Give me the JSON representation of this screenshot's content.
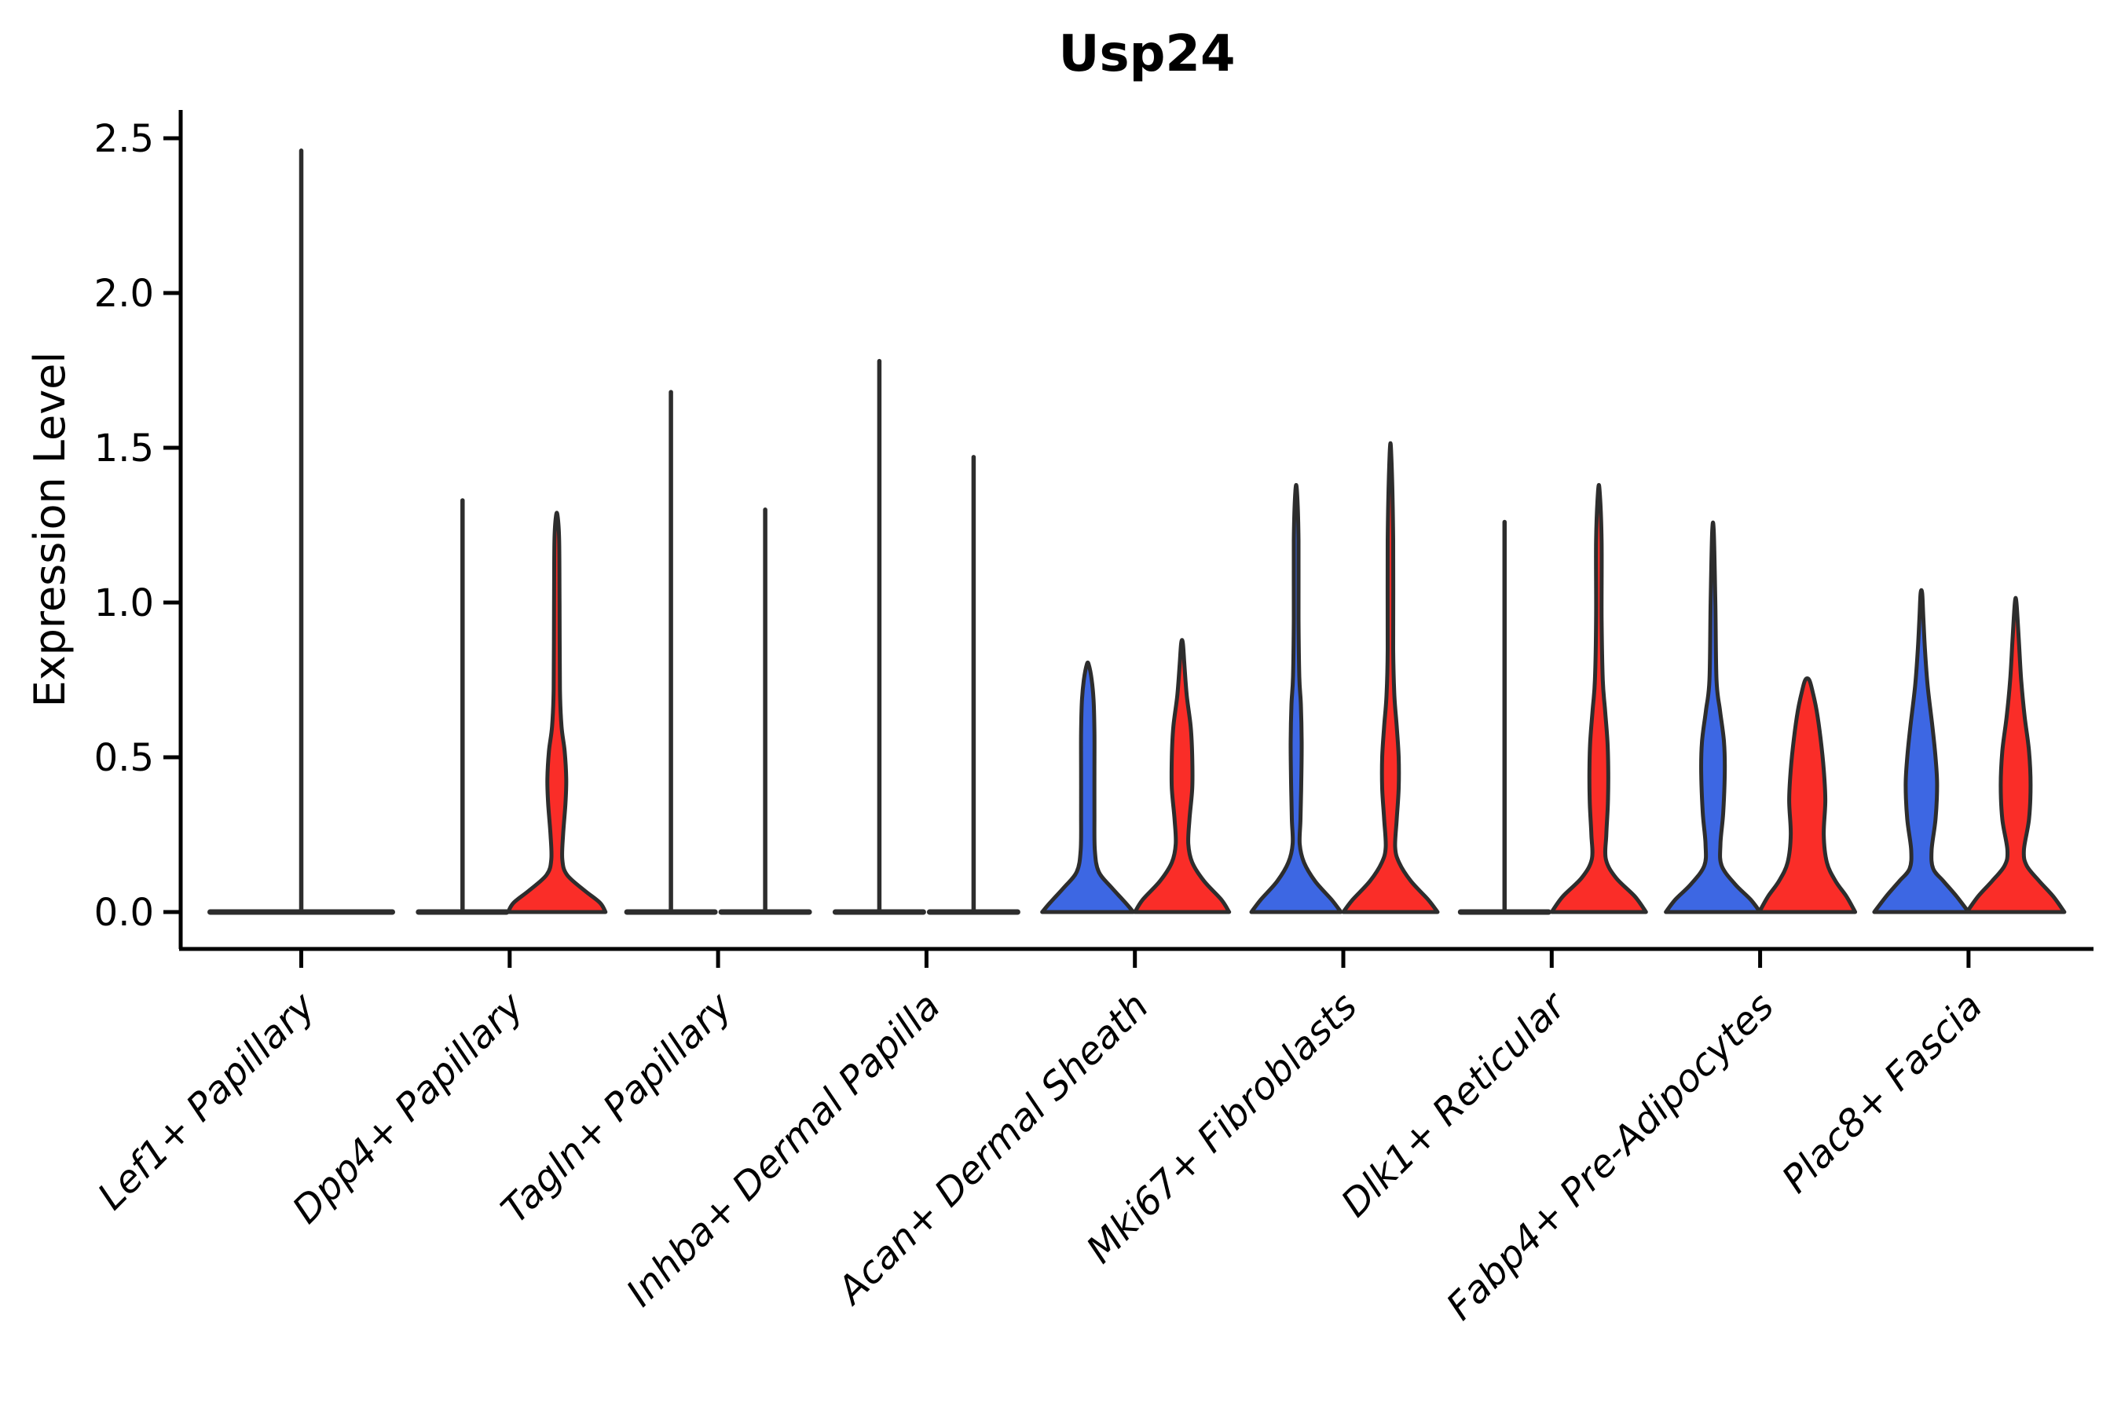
{
  "title": "Usp24",
  "axes": {
    "ylabel": "Expression Level",
    "yticks": [
      {
        "value": 0.0,
        "label": "0.0"
      },
      {
        "value": 0.5,
        "label": "0.5"
      },
      {
        "value": 1.0,
        "label": "1.0"
      },
      {
        "value": 1.5,
        "label": "1.5"
      },
      {
        "value": 2.0,
        "label": "2.0"
      },
      {
        "value": 2.5,
        "label": "2.5"
      }
    ],
    "ylim": [
      -0.12,
      2.6
    ],
    "xlabel_rotation_deg": 45,
    "xlabel_style": "italic"
  },
  "colors": {
    "blue": "#3D67E3",
    "red": "#FA2D28",
    "outline": "#2D2D2D",
    "axis": "#000000",
    "text": "#000000",
    "background": "#ffffff"
  },
  "chart_data": {
    "type": "violin",
    "title": "Usp24",
    "ylabel": "Expression Level",
    "ylim": [
      -0.12,
      2.6
    ],
    "yticks": [
      0.0,
      0.5,
      1.0,
      1.5,
      2.0,
      2.5
    ],
    "legend": "none",
    "grid": "off",
    "groups": [
      {
        "name": "blue",
        "color": "#3D67E3"
      },
      {
        "name": "red",
        "color": "#FA2D28"
      }
    ],
    "categories": [
      "Lef1+ Papillary",
      "Dpp4+ Papillary",
      "Tagln+ Papillary",
      "Inhba+ Dermal Papilla",
      "Acan+ Dermal Sheath",
      "Mki67+ Fibroblasts",
      "Dlk1+ Reticular",
      "Fabp4+ Pre-Adipocytes",
      "Plac8+ Fascia"
    ],
    "max_expression": {
      "blue": [
        2.46,
        1.33,
        1.68,
        1.78,
        0.8,
        1.36,
        1.26,
        1.23,
        1.03
      ],
      "red": [
        null,
        1.28,
        1.3,
        1.47,
        0.87,
        1.48,
        1.36,
        0.75,
        1.0
      ]
    },
    "note": "Most density sits at expression 0; Lef1+ Papillary shows a single full-width collapsed violin centered on its tick. Profiles give half-width (px) at each expression value.",
    "violins": [
      {
        "label": "Lef1+ Papillary",
        "items": [
          {
            "group": "single",
            "kind": "spike",
            "center_offset": 0,
            "base_halfwidth": 120,
            "max": 2.46
          }
        ]
      },
      {
        "label": "Dpp4+ Papillary",
        "items": [
          {
            "group": "blue",
            "kind": "spike",
            "center_offset": -60,
            "base_halfwidth": 60,
            "max": 1.33
          },
          {
            "group": "red",
            "kind": "body",
            "center_offset": 60,
            "max": 1.28,
            "profile": [
              [
                0,
                62
              ],
              [
                0.03,
                55
              ],
              [
                0.07,
                35
              ],
              [
                0.12,
                13
              ],
              [
                0.17,
                7
              ],
              [
                0.25,
                8
              ],
              [
                0.35,
                11
              ],
              [
                0.43,
                12
              ],
              [
                0.52,
                10
              ],
              [
                0.6,
                6
              ],
              [
                0.72,
                4
              ],
              [
                1.0,
                3.5
              ],
              [
                1.2,
                3
              ],
              [
                1.28,
                1
              ]
            ]
          }
        ]
      },
      {
        "label": "Tagln+ Papillary",
        "items": [
          {
            "group": "blue",
            "kind": "spike",
            "center_offset": -60,
            "base_halfwidth": 60,
            "max": 1.68
          },
          {
            "group": "red",
            "kind": "spike",
            "center_offset": 60,
            "base_halfwidth": 60,
            "max": 1.3
          }
        ]
      },
      {
        "label": "Inhba+ Dermal Papilla",
        "items": [
          {
            "group": "blue",
            "kind": "spike",
            "center_offset": -60,
            "base_halfwidth": 60,
            "max": 1.78
          },
          {
            "group": "red",
            "kind": "spike",
            "center_offset": 60,
            "base_halfwidth": 60,
            "max": 1.47
          }
        ]
      },
      {
        "label": "Acan+ Dermal Sheath",
        "items": [
          {
            "group": "blue",
            "kind": "body",
            "center_offset": -60,
            "max": 0.8,
            "profile": [
              [
                0,
                58
              ],
              [
                0.03,
                48
              ],
              [
                0.08,
                30
              ],
              [
                0.13,
                14
              ],
              [
                0.2,
                9
              ],
              [
                0.32,
                8.5
              ],
              [
                0.45,
                8.5
              ],
              [
                0.58,
                8.5
              ],
              [
                0.68,
                7.5
              ],
              [
                0.75,
                5
              ],
              [
                0.8,
                1.2
              ]
            ]
          },
          {
            "group": "red",
            "kind": "body",
            "center_offset": 60,
            "max": 0.87,
            "profile": [
              [
                0,
                60
              ],
              [
                0.04,
                50
              ],
              [
                0.1,
                28
              ],
              [
                0.16,
                13
              ],
              [
                0.22,
                8
              ],
              [
                0.3,
                9.5
              ],
              [
                0.4,
                13
              ],
              [
                0.5,
                13
              ],
              [
                0.6,
                11
              ],
              [
                0.7,
                6
              ],
              [
                0.8,
                3
              ],
              [
                0.87,
                1
              ]
            ]
          }
        ]
      },
      {
        "label": "Mki67+ Fibroblasts",
        "items": [
          {
            "group": "blue",
            "kind": "body",
            "center_offset": -60,
            "max": 1.36,
            "profile": [
              [
                0,
                57
              ],
              [
                0.04,
                45
              ],
              [
                0.1,
                24
              ],
              [
                0.16,
                10
              ],
              [
                0.22,
                4.5
              ],
              [
                0.3,
                5.5
              ],
              [
                0.42,
                6.5
              ],
              [
                0.55,
                7
              ],
              [
                0.67,
                6
              ],
              [
                0.76,
                4
              ],
              [
                0.95,
                3
              ],
              [
                1.2,
                3
              ],
              [
                1.36,
                1
              ]
            ]
          },
          {
            "group": "red",
            "kind": "body",
            "center_offset": 60,
            "max": 1.48,
            "profile": [
              [
                0,
                60
              ],
              [
                0.04,
                48
              ],
              [
                0.1,
                26
              ],
              [
                0.16,
                11
              ],
              [
                0.21,
                6
              ],
              [
                0.3,
                8
              ],
              [
                0.4,
                10.5
              ],
              [
                0.5,
                10.5
              ],
              [
                0.6,
                8
              ],
              [
                0.7,
                5
              ],
              [
                0.85,
                3.5
              ],
              [
                1.2,
                3.5
              ],
              [
                1.48,
                1
              ]
            ]
          }
        ]
      },
      {
        "label": "Dlk1+ Reticular",
        "items": [
          {
            "group": "blue",
            "kind": "spike",
            "center_offset": -60,
            "base_halfwidth": 60,
            "max": 1.26
          },
          {
            "group": "red",
            "kind": "body",
            "center_offset": 60,
            "max": 1.36,
            "profile": [
              [
                0,
                60
              ],
              [
                0.05,
                46
              ],
              [
                0.11,
                22
              ],
              [
                0.17,
                9
              ],
              [
                0.25,
                9.5
              ],
              [
                0.35,
                11.5
              ],
              [
                0.45,
                12
              ],
              [
                0.55,
                11
              ],
              [
                0.65,
                8
              ],
              [
                0.75,
                5
              ],
              [
                0.95,
                3.5
              ],
              [
                1.2,
                3.5
              ],
              [
                1.36,
                1
              ]
            ]
          }
        ]
      },
      {
        "label": "Fabp4+ Pre-Adipocytes",
        "items": [
          {
            "group": "blue",
            "kind": "body",
            "center_offset": -60,
            "max": 1.23,
            "profile": [
              [
                0,
                60
              ],
              [
                0.04,
                48
              ],
              [
                0.09,
                28
              ],
              [
                0.15,
                11
              ],
              [
                0.22,
                9.5
              ],
              [
                0.32,
                13
              ],
              [
                0.45,
                15
              ],
              [
                0.55,
                14
              ],
              [
                0.65,
                9
              ],
              [
                0.75,
                4.5
              ],
              [
                1.0,
                3
              ],
              [
                1.23,
                1
              ]
            ]
          },
          {
            "group": "red",
            "kind": "body",
            "center_offset": 60,
            "max": 0.75,
            "profile": [
              [
                0,
                61
              ],
              [
                0.05,
                50
              ],
              [
                0.1,
                36
              ],
              [
                0.16,
                25
              ],
              [
                0.25,
                21
              ],
              [
                0.36,
                23
              ],
              [
                0.46,
                21
              ],
              [
                0.56,
                17
              ],
              [
                0.65,
                12
              ],
              [
                0.71,
                7
              ],
              [
                0.75,
                2.5
              ]
            ]
          }
        ]
      },
      {
        "label": "Plac8+ Fascia",
        "items": [
          {
            "group": "blue",
            "kind": "body",
            "center_offset": -60,
            "max": 1.03,
            "profile": [
              [
                0,
                60
              ],
              [
                0.05,
                45
              ],
              [
                0.1,
                28
              ],
              [
                0.14,
                15
              ],
              [
                0.2,
                13
              ],
              [
                0.3,
                18
              ],
              [
                0.41,
                20
              ],
              [
                0.5,
                18
              ],
              [
                0.6,
                14
              ],
              [
                0.73,
                8
              ],
              [
                0.85,
                4.5
              ],
              [
                0.95,
                2.5
              ],
              [
                1.03,
                1
              ]
            ]
          },
          {
            "group": "red",
            "kind": "body",
            "center_offset": 60,
            "max": 1.0,
            "profile": [
              [
                0,
                62
              ],
              [
                0.05,
                48
              ],
              [
                0.1,
                30
              ],
              [
                0.15,
                14
              ],
              [
                0.2,
                10.5
              ],
              [
                0.3,
                17
              ],
              [
                0.41,
                19
              ],
              [
                0.52,
                17
              ],
              [
                0.63,
                11.5
              ],
              [
                0.75,
                7
              ],
              [
                0.88,
                4
              ],
              [
                1.0,
                1
              ]
            ]
          }
        ]
      }
    ]
  }
}
